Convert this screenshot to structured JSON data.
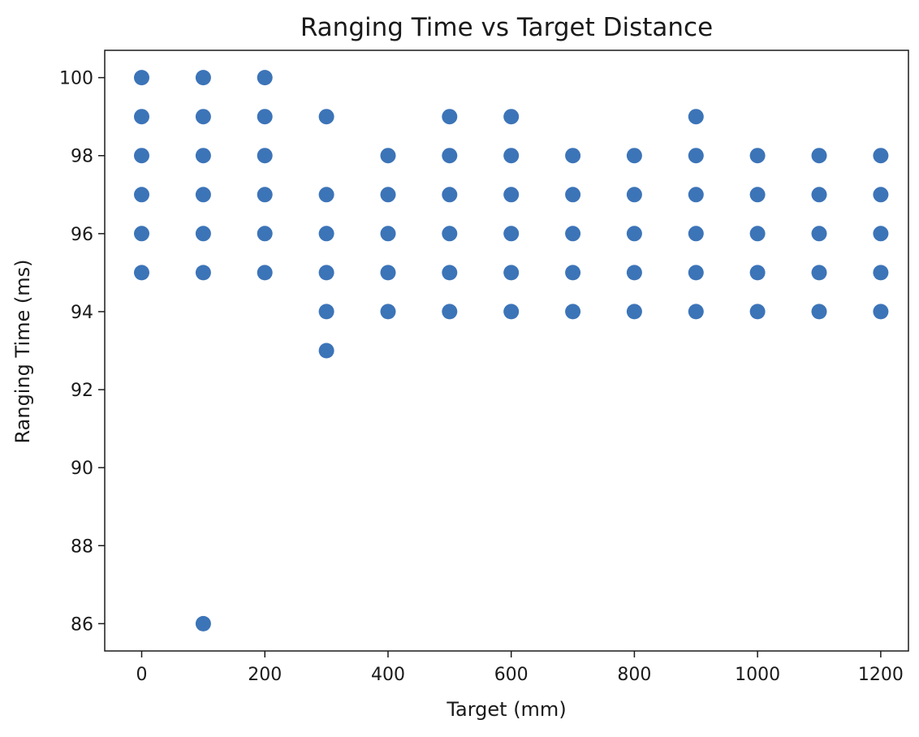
{
  "chart_data": {
    "type": "scatter",
    "title": "Ranging Time vs Target Distance",
    "xlabel": "Target (mm)",
    "ylabel": "Ranging Time (ms)",
    "xlim": [
      -60,
      1245
    ],
    "ylim": [
      85.3,
      100.7
    ],
    "xticks": [
      0,
      200,
      400,
      600,
      800,
      1000,
      1200
    ],
    "yticks": [
      86,
      88,
      90,
      92,
      94,
      96,
      98,
      100
    ],
    "grid": false,
    "legend": "none",
    "marker_color": "#3c74b8",
    "points": [
      {
        "x": 0,
        "y": 100
      },
      {
        "x": 0,
        "y": 99
      },
      {
        "x": 0,
        "y": 98
      },
      {
        "x": 0,
        "y": 97
      },
      {
        "x": 0,
        "y": 96
      },
      {
        "x": 0,
        "y": 95
      },
      {
        "x": 100,
        "y": 100
      },
      {
        "x": 100,
        "y": 99
      },
      {
        "x": 100,
        "y": 98
      },
      {
        "x": 100,
        "y": 97
      },
      {
        "x": 100,
        "y": 96
      },
      {
        "x": 100,
        "y": 95
      },
      {
        "x": 100,
        "y": 86
      },
      {
        "x": 200,
        "y": 100
      },
      {
        "x": 200,
        "y": 99
      },
      {
        "x": 200,
        "y": 98
      },
      {
        "x": 200,
        "y": 97
      },
      {
        "x": 200,
        "y": 96
      },
      {
        "x": 200,
        "y": 95
      },
      {
        "x": 300,
        "y": 99
      },
      {
        "x": 300,
        "y": 97
      },
      {
        "x": 300,
        "y": 96
      },
      {
        "x": 300,
        "y": 95
      },
      {
        "x": 300,
        "y": 94
      },
      {
        "x": 300,
        "y": 93
      },
      {
        "x": 400,
        "y": 98
      },
      {
        "x": 400,
        "y": 97
      },
      {
        "x": 400,
        "y": 96
      },
      {
        "x": 400,
        "y": 95
      },
      {
        "x": 400,
        "y": 94
      },
      {
        "x": 500,
        "y": 99
      },
      {
        "x": 500,
        "y": 98
      },
      {
        "x": 500,
        "y": 97
      },
      {
        "x": 500,
        "y": 96
      },
      {
        "x": 500,
        "y": 95
      },
      {
        "x": 500,
        "y": 94
      },
      {
        "x": 600,
        "y": 99
      },
      {
        "x": 600,
        "y": 98
      },
      {
        "x": 600,
        "y": 97
      },
      {
        "x": 600,
        "y": 96
      },
      {
        "x": 600,
        "y": 95
      },
      {
        "x": 600,
        "y": 94
      },
      {
        "x": 700,
        "y": 98
      },
      {
        "x": 700,
        "y": 97
      },
      {
        "x": 700,
        "y": 96
      },
      {
        "x": 700,
        "y": 95
      },
      {
        "x": 700,
        "y": 94
      },
      {
        "x": 800,
        "y": 98
      },
      {
        "x": 800,
        "y": 97
      },
      {
        "x": 800,
        "y": 96
      },
      {
        "x": 800,
        "y": 95
      },
      {
        "x": 800,
        "y": 94
      },
      {
        "x": 900,
        "y": 99
      },
      {
        "x": 900,
        "y": 98
      },
      {
        "x": 900,
        "y": 97
      },
      {
        "x": 900,
        "y": 96
      },
      {
        "x": 900,
        "y": 95
      },
      {
        "x": 900,
        "y": 94
      },
      {
        "x": 1000,
        "y": 98
      },
      {
        "x": 1000,
        "y": 97
      },
      {
        "x": 1000,
        "y": 96
      },
      {
        "x": 1000,
        "y": 95
      },
      {
        "x": 1000,
        "y": 94
      },
      {
        "x": 1100,
        "y": 98
      },
      {
        "x": 1100,
        "y": 97
      },
      {
        "x": 1100,
        "y": 96
      },
      {
        "x": 1100,
        "y": 95
      },
      {
        "x": 1100,
        "y": 94
      },
      {
        "x": 1200,
        "y": 98
      },
      {
        "x": 1200,
        "y": 97
      },
      {
        "x": 1200,
        "y": 96
      },
      {
        "x": 1200,
        "y": 95
      },
      {
        "x": 1200,
        "y": 94
      }
    ]
  }
}
